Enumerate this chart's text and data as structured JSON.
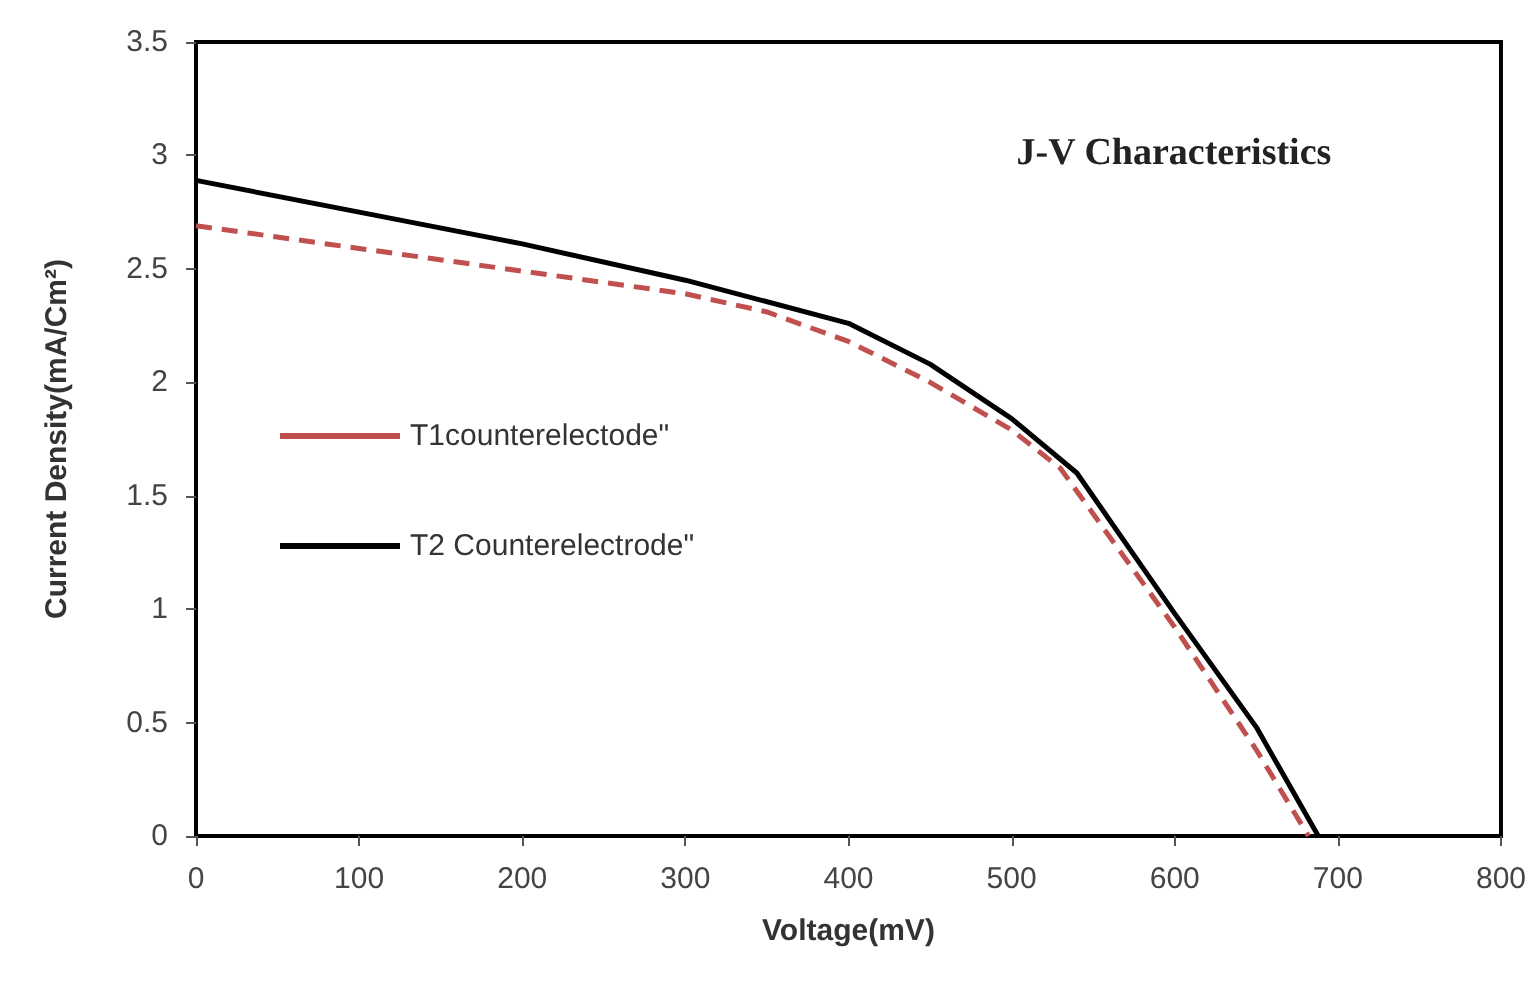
{
  "chart_data": {
    "type": "line",
    "title": "J-V Characteristics",
    "xlabel": "Voltage(mV)",
    "ylabel": "Current Density(mA/Cm²)",
    "xlim": [
      0,
      800
    ],
    "xticks": [
      0,
      100,
      200,
      300,
      400,
      500,
      600,
      700,
      800
    ],
    "ylim": [
      0,
      3.5
    ],
    "yticks": [
      0,
      0.5,
      1,
      1.5,
      2,
      2.5,
      3,
      3.5
    ],
    "grid": false,
    "legend": "left",
    "marker": "none",
    "series": [
      {
        "name": "T1counterelectode\"",
        "color": "#c0504d",
        "line_style": "dashed",
        "x": [
          0,
          100,
          200,
          300,
          350,
          400,
          450,
          500,
          530,
          600,
          650,
          682
        ],
        "values": [
          2.69,
          2.59,
          2.49,
          2.39,
          2.31,
          2.18,
          2.0,
          1.79,
          1.62,
          0.92,
          0.38,
          0
        ]
      },
      {
        "name": "T2 Counterelectrode\"",
        "color": "#000000",
        "line_style": "solid",
        "x": [
          0,
          100,
          200,
          300,
          400,
          450,
          500,
          540,
          600,
          650,
          688
        ],
        "values": [
          2.89,
          2.75,
          2.61,
          2.45,
          2.26,
          2.08,
          1.84,
          1.6,
          0.98,
          0.48,
          0
        ]
      }
    ]
  }
}
